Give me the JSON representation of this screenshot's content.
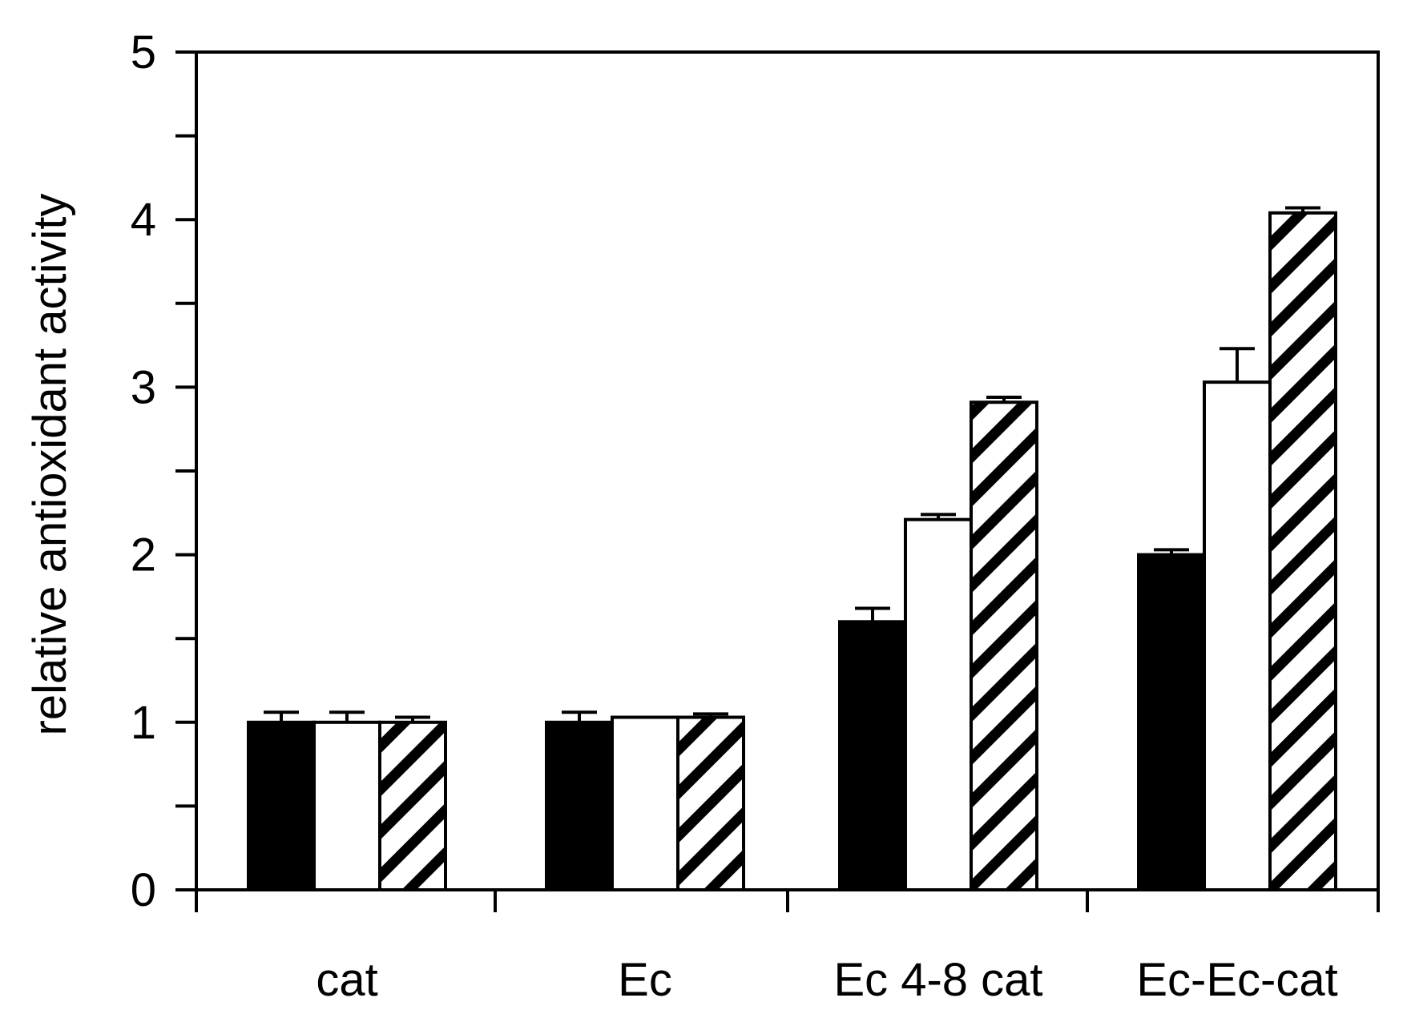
{
  "chart_data": {
    "type": "bar",
    "title": "",
    "xlabel": "",
    "ylabel": "relative antioxidant activity",
    "categories": [
      "cat",
      "Ec",
      "Ec 4-8 cat",
      "Ec-Ec-cat"
    ],
    "ylim": [
      0,
      5
    ],
    "yticks": [
      0,
      1,
      2,
      3,
      4,
      5
    ],
    "grid": false,
    "legend": "none",
    "series": [
      {
        "fill": "#000000",
        "pattern": "solid",
        "values": [
          1.0,
          1.0,
          1.6,
          2.0
        ],
        "errors": [
          0.06,
          0.06,
          0.08,
          0.03
        ]
      },
      {
        "fill": "#ffffff",
        "pattern": "none",
        "values": [
          1.0,
          1.03,
          2.21,
          3.03
        ],
        "errors": [
          0.06,
          0.0,
          0.03,
          0.2
        ]
      },
      {
        "fill": "#ffffff",
        "pattern": "diagonal-hatch",
        "values": [
          1.0,
          1.03,
          2.91,
          4.04
        ],
        "errors": [
          0.03,
          0.02,
          0.03,
          0.03
        ]
      }
    ]
  }
}
